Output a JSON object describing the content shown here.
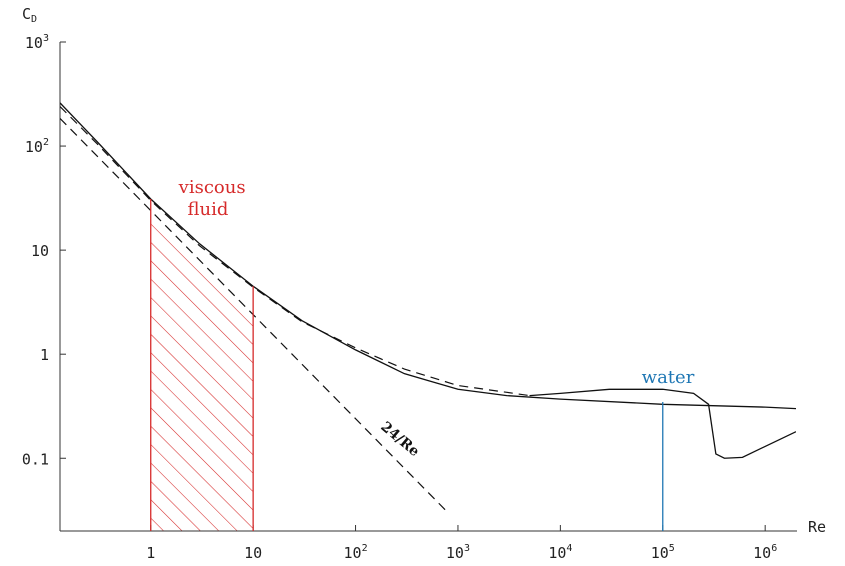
{
  "chart_data": {
    "type": "line",
    "xlabel": "Re",
    "ylabel": "C",
    "ylabel_sub": "D",
    "xscale": "log",
    "yscale": "log",
    "xlim": [
      0.13,
      2000000
    ],
    "ylim": [
      0.02,
      1000
    ],
    "x_ticks": [
      {
        "value": 1,
        "label": "1"
      },
      {
        "value": 10,
        "label": "10"
      },
      {
        "value": 100,
        "base": "10",
        "exp": "2"
      },
      {
        "value": 1000,
        "base": "10",
        "exp": "3"
      },
      {
        "value": 10000,
        "base": "10",
        "exp": "4"
      },
      {
        "value": 100000,
        "base": "10",
        "exp": "5"
      },
      {
        "value": 1000000,
        "base": "10",
        "exp": "6"
      }
    ],
    "y_ticks": [
      {
        "value": 0.1,
        "label": "0.1"
      },
      {
        "value": 1,
        "label": "1"
      },
      {
        "value": 10,
        "label": "10"
      },
      {
        "value": 100,
        "base": "10",
        "exp": "2"
      },
      {
        "value": 1000,
        "base": "10",
        "exp": "3"
      }
    ],
    "series": [
      {
        "style": "solid",
        "points": [
          [
            0.13,
            260
          ],
          [
            0.3,
            110
          ],
          [
            1,
            31
          ],
          [
            3,
            11.5
          ],
          [
            10,
            4.5
          ],
          [
            30,
            2.1
          ],
          [
            100,
            1.1
          ],
          [
            300,
            0.65
          ],
          [
            1000,
            0.46
          ],
          [
            3000,
            0.4
          ],
          [
            10000,
            0.37
          ],
          [
            100000,
            0.33
          ],
          [
            1000000,
            0.31
          ],
          [
            2000000,
            0.3
          ]
        ]
      },
      {
        "style": "solid",
        "points": [
          [
            5000,
            0.4
          ],
          [
            10000,
            0.42
          ],
          [
            30000,
            0.46
          ],
          [
            100000,
            0.46
          ],
          [
            200000,
            0.42
          ],
          [
            280000,
            0.33
          ],
          [
            330000,
            0.11
          ],
          [
            400000,
            0.1
          ],
          [
            600000,
            0.102
          ],
          [
            1000000,
            0.13
          ],
          [
            2000000,
            0.18
          ]
        ]
      },
      {
        "style": "dashed",
        "points": [
          [
            0.13,
            240
          ],
          [
            0.3,
            105
          ],
          [
            1,
            30
          ],
          [
            3,
            11
          ],
          [
            10,
            4.4
          ],
          [
            30,
            2.05
          ],
          [
            100,
            1.15
          ],
          [
            300,
            0.72
          ],
          [
            1000,
            0.5
          ],
          [
            3000,
            0.43
          ],
          [
            5000,
            0.4
          ]
        ]
      },
      {
        "name": "24/Re",
        "style": "dashed",
        "points": [
          [
            0.13,
            184.6
          ],
          [
            820,
            0.02927
          ]
        ]
      }
    ],
    "annotations": [
      {
        "text_lines": [
          "viscous",
          "fluid"
        ],
        "color": "#d62a2a"
      },
      {
        "text": "water",
        "color": "#1f77b4",
        "x": 100000
      },
      {
        "text": "24/Re",
        "color": "#111111"
      }
    ],
    "shaded_region": {
      "x_from": 1,
      "x_to": 10,
      "color": "#d62a2a",
      "pattern": "hatch"
    }
  }
}
